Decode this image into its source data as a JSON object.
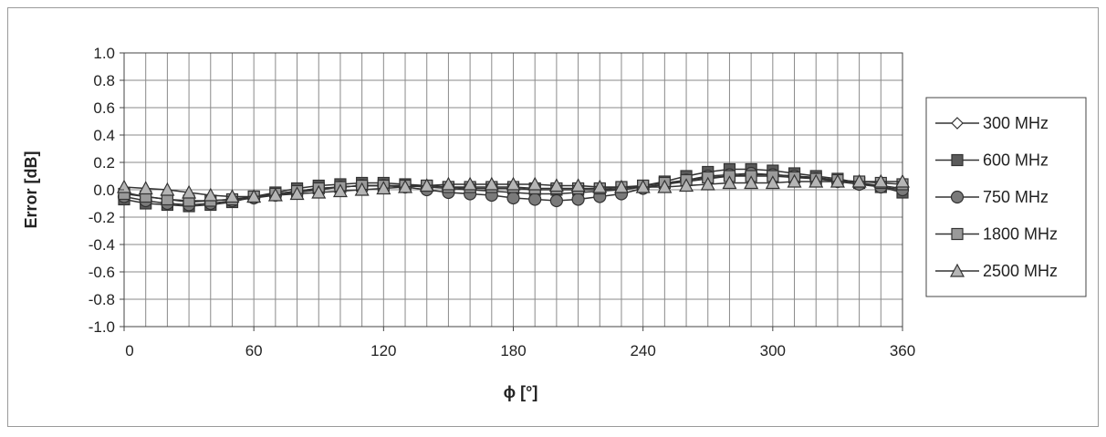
{
  "chart_data": {
    "type": "line",
    "title": "",
    "xlabel": "ϕ [°]",
    "ylabel": "Error [dB]",
    "xlim": [
      0,
      360
    ],
    "ylim": [
      -1.0,
      1.0
    ],
    "x_ticks": [
      0,
      60,
      120,
      180,
      240,
      300,
      360
    ],
    "x_tick_labels": [
      "0",
      "60",
      "120",
      "180",
      "240",
      "300",
      "360"
    ],
    "y_ticks": [
      1.0,
      0.8,
      0.6,
      0.4,
      0.2,
      0.0,
      -0.2,
      -0.4,
      -0.6,
      -0.8,
      -1.0
    ],
    "y_tick_labels": [
      "1.0",
      "0.8",
      "0.6",
      "0.4",
      "0.2",
      "0.0",
      "-0.2",
      "-0.4",
      "-0.6",
      "-0.8",
      "-1.0"
    ],
    "grid": true,
    "legend_position": "right",
    "x": [
      0,
      10,
      20,
      30,
      40,
      50,
      60,
      70,
      80,
      90,
      100,
      110,
      120,
      130,
      140,
      150,
      160,
      170,
      180,
      190,
      200,
      210,
      220,
      230,
      240,
      250,
      260,
      270,
      280,
      290,
      300,
      310,
      320,
      330,
      340,
      350,
      360
    ],
    "series": [
      {
        "name": "300 MHz",
        "marker": "diamond",
        "fill": "#ffffff",
        "values": [
          -0.02,
          -0.05,
          -0.07,
          -0.09,
          -0.08,
          -0.07,
          -0.05,
          -0.03,
          -0.01,
          0.01,
          0.02,
          0.03,
          0.03,
          0.03,
          0.02,
          0.01,
          0.0,
          -0.01,
          -0.02,
          -0.03,
          -0.03,
          -0.02,
          -0.01,
          0.0,
          0.02,
          0.04,
          0.06,
          0.08,
          0.1,
          0.11,
          0.11,
          0.1,
          0.09,
          0.07,
          0.05,
          0.03,
          0.01
        ]
      },
      {
        "name": "600 MHz",
        "marker": "square",
        "fill": "#5a5a5a",
        "values": [
          -0.07,
          -0.1,
          -0.11,
          -0.12,
          -0.11,
          -0.09,
          -0.05,
          -0.02,
          0.01,
          0.03,
          0.04,
          0.05,
          0.05,
          0.04,
          0.03,
          0.02,
          0.01,
          0.01,
          0.01,
          0.0,
          0.0,
          0.0,
          0.0,
          0.01,
          0.03,
          0.06,
          0.1,
          0.13,
          0.15,
          0.15,
          0.14,
          0.12,
          0.1,
          0.08,
          0.05,
          0.02,
          -0.02
        ]
      },
      {
        "name": "750 MHz",
        "marker": "circle",
        "fill": "#7a7a7a",
        "values": [
          -0.05,
          -0.08,
          -0.1,
          -0.11,
          -0.1,
          -0.08,
          -0.06,
          -0.04,
          -0.02,
          0.0,
          0.02,
          0.03,
          0.03,
          0.02,
          0.0,
          -0.02,
          -0.03,
          -0.04,
          -0.06,
          -0.07,
          -0.08,
          -0.07,
          -0.05,
          -0.03,
          0.01,
          0.04,
          0.07,
          0.1,
          0.11,
          0.12,
          0.11,
          0.1,
          0.08,
          0.06,
          0.04,
          0.02,
          0.0
        ]
      },
      {
        "name": "1800 MHz",
        "marker": "square",
        "fill": "#9a9a9a",
        "values": [
          -0.03,
          -0.05,
          -0.07,
          -0.08,
          -0.08,
          -0.07,
          -0.05,
          -0.03,
          -0.01,
          0.01,
          0.02,
          0.03,
          0.03,
          0.03,
          0.03,
          0.02,
          0.02,
          0.02,
          0.02,
          0.01,
          0.01,
          0.01,
          0.01,
          0.02,
          0.03,
          0.05,
          0.07,
          0.09,
          0.1,
          0.1,
          0.1,
          0.09,
          0.08,
          0.07,
          0.06,
          0.05,
          0.04
        ]
      },
      {
        "name": "2500 MHz",
        "marker": "triangle",
        "fill": "#b5b5b5",
        "values": [
          0.02,
          0.01,
          0.0,
          -0.02,
          -0.04,
          -0.05,
          -0.05,
          -0.04,
          -0.03,
          -0.02,
          -0.01,
          0.0,
          0.01,
          0.02,
          0.03,
          0.04,
          0.04,
          0.04,
          0.04,
          0.04,
          0.03,
          0.03,
          0.02,
          0.02,
          0.02,
          0.02,
          0.03,
          0.04,
          0.05,
          0.05,
          0.05,
          0.06,
          0.06,
          0.06,
          0.06,
          0.06,
          0.06
        ]
      }
    ]
  }
}
